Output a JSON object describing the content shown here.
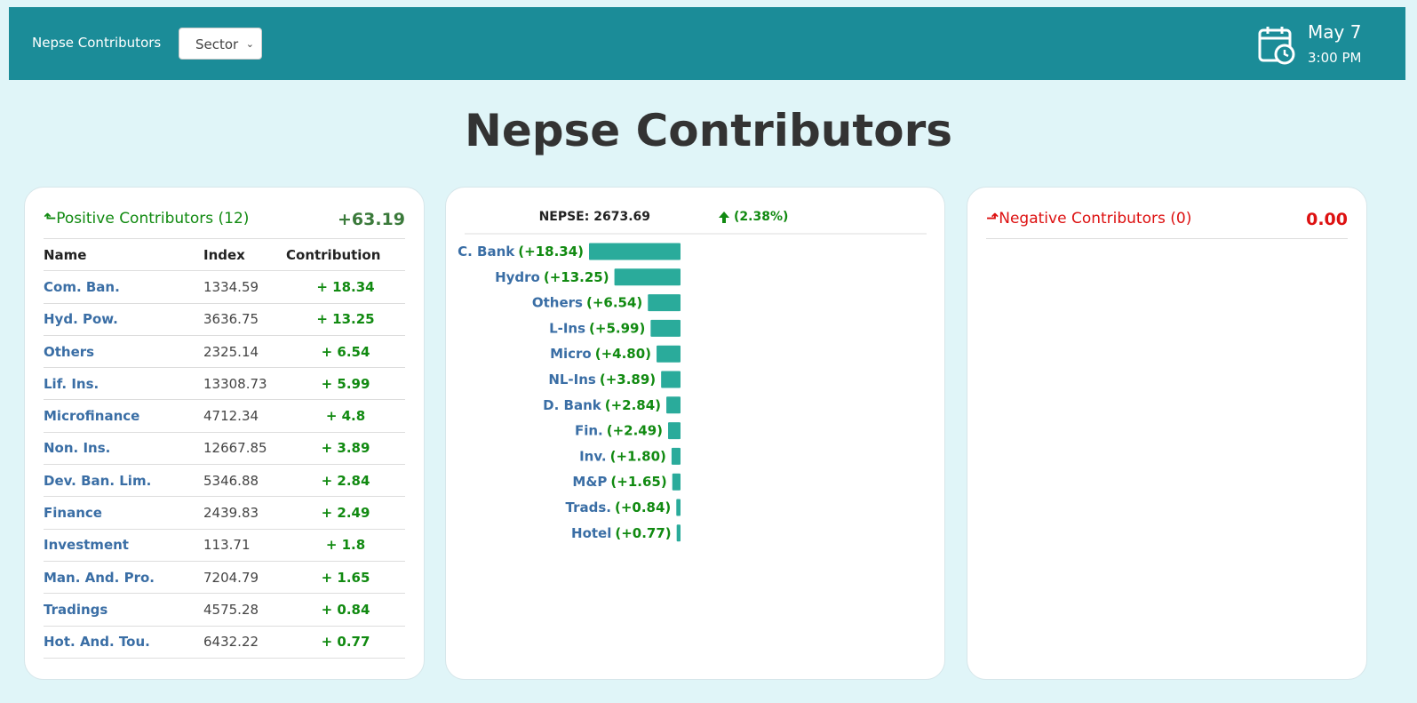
{
  "header": {
    "brand": "Nepse Contributors",
    "select": "Sector",
    "date": "May 7",
    "time": "3:00 PM"
  },
  "title": "Nepse Contributors",
  "positive": {
    "title": "Positive Contributors (12)",
    "total": "+63.19",
    "columns": [
      "Name",
      "Index",
      "Contribution"
    ],
    "rows": [
      [
        "Com. Ban.",
        1334.59,
        "+ 18.34"
      ],
      [
        "Hyd. Pow.",
        3636.75,
        "+ 13.25"
      ],
      [
        "Others",
        2325.14,
        "+ 6.54"
      ],
      [
        "Lif. Ins.",
        13308.73,
        "+ 5.99"
      ],
      [
        "Microfinance",
        4712.34,
        "+ 4.8"
      ],
      [
        "Non. Ins.",
        12667.85,
        "+ 3.89"
      ],
      [
        "Dev. Ban. Lim.",
        5346.88,
        "+ 2.84"
      ],
      [
        "Finance",
        2439.83,
        "+ 2.49"
      ],
      [
        "Investment",
        113.71,
        "+ 1.8"
      ],
      [
        "Man. And. Pro.",
        7204.79,
        "+ 1.65"
      ],
      [
        "Tradings",
        4575.28,
        "+ 0.84"
      ],
      [
        "Hot. And. Tou.",
        6432.22,
        "+ 0.77"
      ]
    ]
  },
  "chart_data": {
    "type": "bar",
    "orientation": "horizontal",
    "title": "NEPSE: 2673.69",
    "subtitle": "(2.38%)",
    "categories": [
      "C. Bank",
      "Hydro",
      "Others",
      "L-Ins",
      "Micro",
      "NL-Ins",
      "D. Bank",
      "Fin.",
      "Inv.",
      "M&P",
      "Trads.",
      "Hotel"
    ],
    "values": [
      18.34,
      13.25,
      6.54,
      5.99,
      4.8,
      3.89,
      2.84,
      2.49,
      1.8,
      1.65,
      0.84,
      0.77
    ],
    "value_labels": [
      "(+18.34)",
      "(+13.25)",
      "(+6.54)",
      "(+5.99)",
      "(+4.80)",
      "(+3.89)",
      "(+2.84)",
      "(+2.49)",
      "(+1.80)",
      "(+1.65)",
      "(+0.84)",
      "(+0.77)"
    ],
    "color": "#2aab9b"
  },
  "negative": {
    "title": "Negative Contributors (0)",
    "total": "0.00"
  }
}
